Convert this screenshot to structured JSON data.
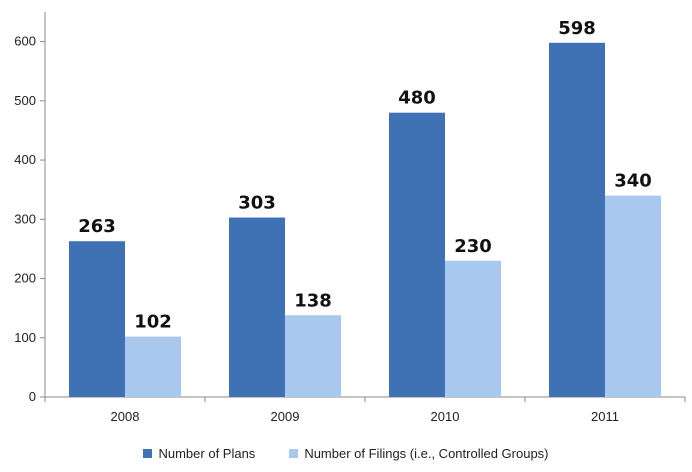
{
  "chart_data": {
    "type": "bar",
    "categories": [
      "2008",
      "2009",
      "2010",
      "2011"
    ],
    "series": [
      {
        "name": "Number of Plans",
        "values": [
          263,
          303,
          480,
          598
        ],
        "color": "#3E72B5"
      },
      {
        "name": "Number of Filings (i.e., Controlled Groups)",
        "values": [
          102,
          138,
          230,
          340
        ],
        "color": "#A9C8EE"
      }
    ],
    "ylim": [
      0,
      650
    ],
    "yticks": [
      0,
      100,
      200,
      300,
      400,
      500,
      600
    ],
    "grid": false,
    "legend_position": "bottom"
  }
}
